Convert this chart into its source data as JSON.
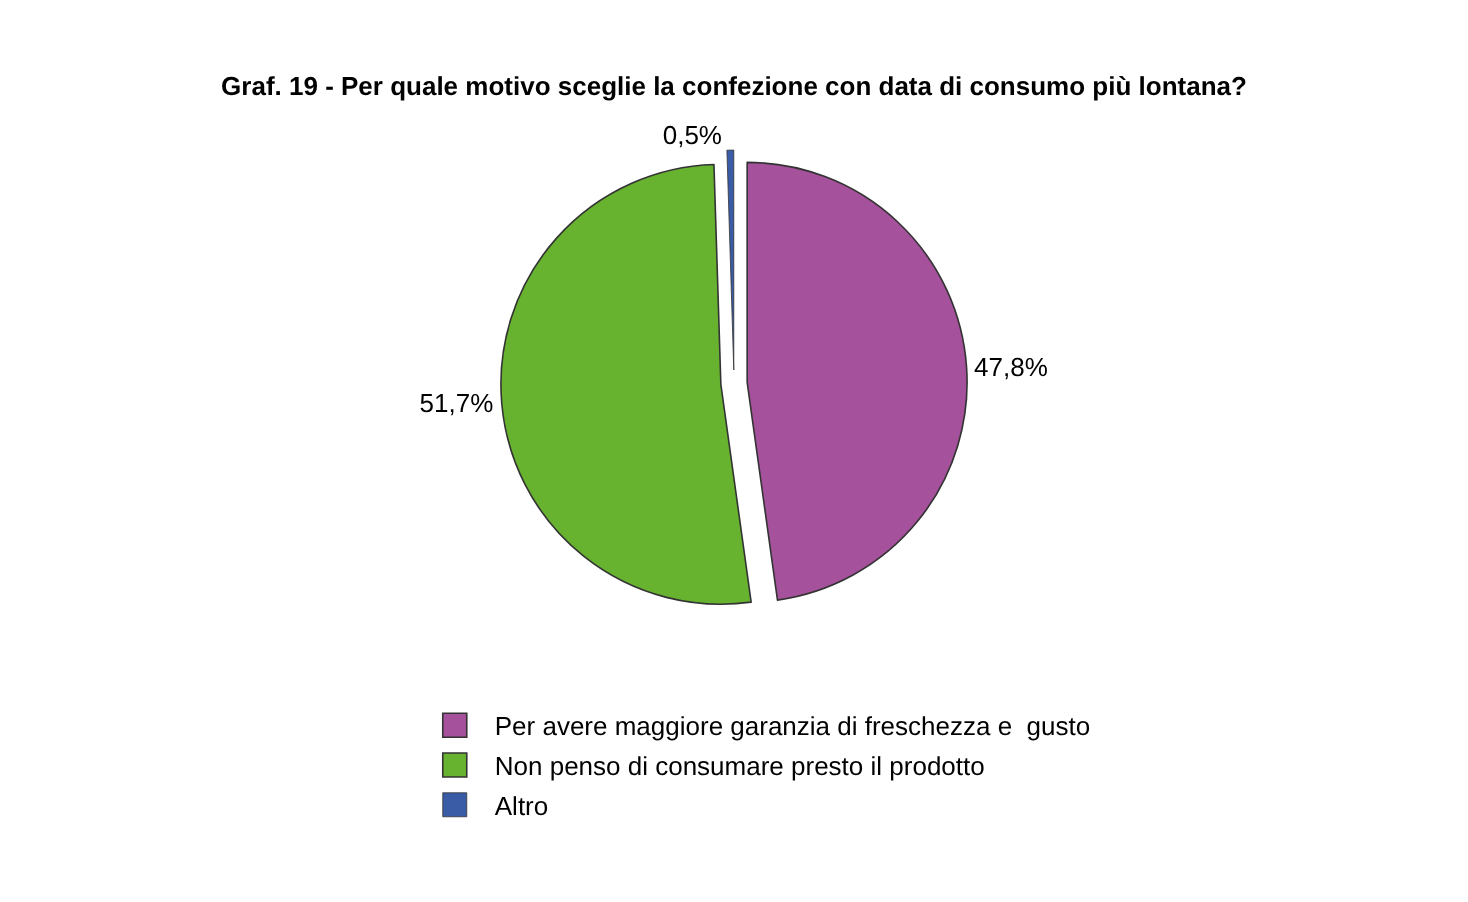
{
  "chart_data": {
    "type": "pie",
    "title": "Graf. 19 - Per quale motivo sceglie la confezione con data di consumo più lontana?",
    "categories": [
      "Per avere maggiore garanzia di freschezza e  gusto",
      "Non penso di consumare presto il prodotto",
      "Altro"
    ],
    "values": [
      47.8,
      51.7,
      0.5
    ],
    "colors": [
      "#a5519b",
      "#67b22f",
      "#3a5ba5"
    ],
    "value_labels": [
      "47,8%",
      "51,7%",
      "0,5%"
    ],
    "legend": "bottom"
  }
}
